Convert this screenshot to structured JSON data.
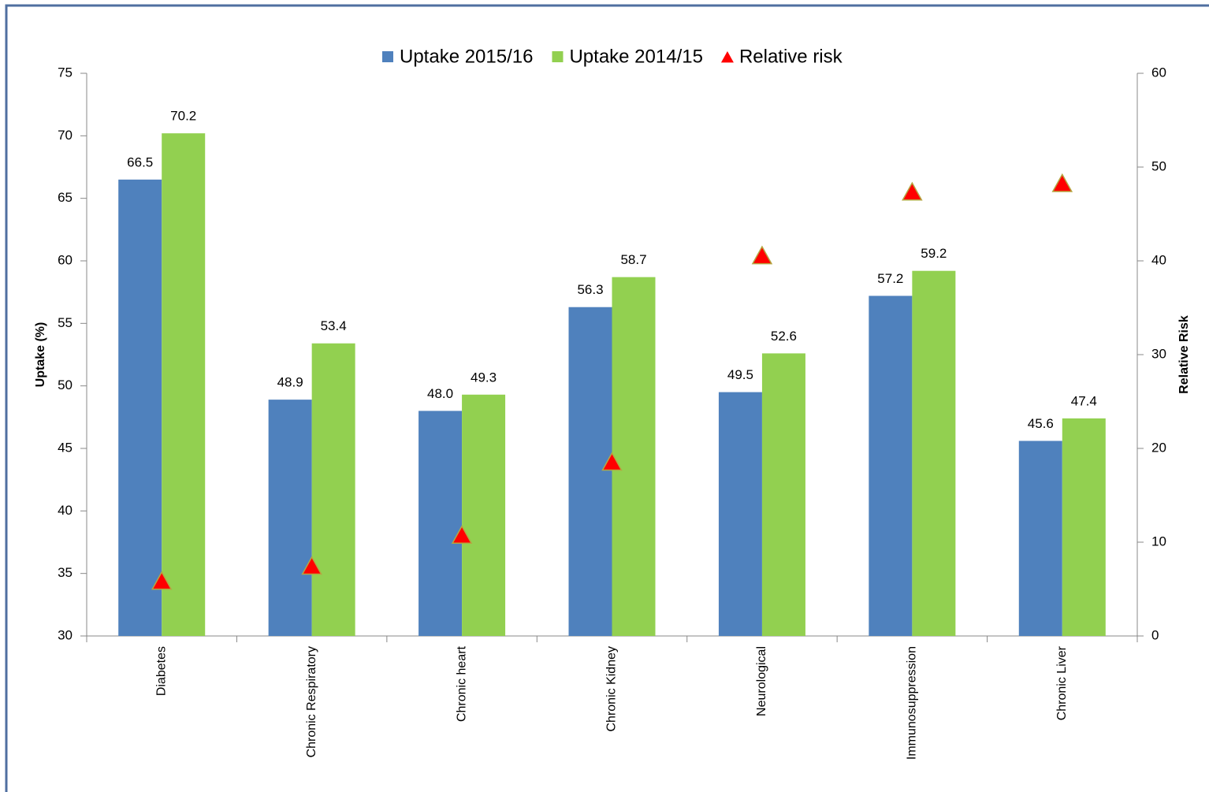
{
  "chart_data": {
    "type": "bar",
    "ylabel": "Uptake (%)",
    "y2label": "Relative Risk",
    "categories": [
      "Diabetes",
      "Chronic Respiratory",
      "Chronic heart",
      "Chronic Kidney",
      "Neurological",
      "Immunosuppression",
      "Chronic Liver"
    ],
    "series": [
      {
        "name": "Uptake 2015/16",
        "color": "#4f81bd",
        "values": [
          66.5,
          48.9,
          48.0,
          56.3,
          49.5,
          57.2,
          45.6
        ],
        "value_labels": [
          "66.5",
          "48.9",
          "48.0",
          "56.3",
          "49.5",
          "57.2",
          "45.6"
        ]
      },
      {
        "name": "Uptake 2014/15",
        "color": "#92d050",
        "values": [
          70.2,
          53.4,
          49.3,
          58.7,
          52.6,
          59.2,
          47.4
        ],
        "value_labels": [
          "70.2",
          "53.4",
          "49.3",
          "58.7",
          "52.6",
          "59.2",
          "47.4"
        ]
      },
      {
        "name": "Relative risk",
        "color": "#ff0000",
        "type": "scatter",
        "axis": "y2",
        "values": [
          5.8,
          7.4,
          10.7,
          18.5,
          40.5,
          47.3,
          48.2
        ]
      }
    ],
    "ylim": [
      30,
      75
    ],
    "yticks": [
      30,
      35,
      40,
      45,
      50,
      55,
      60,
      65,
      70,
      75
    ],
    "y2lim": [
      0,
      60
    ],
    "y2ticks": [
      0,
      10,
      20,
      30,
      40,
      50,
      60
    ],
    "grid": false,
    "legend": "top"
  }
}
